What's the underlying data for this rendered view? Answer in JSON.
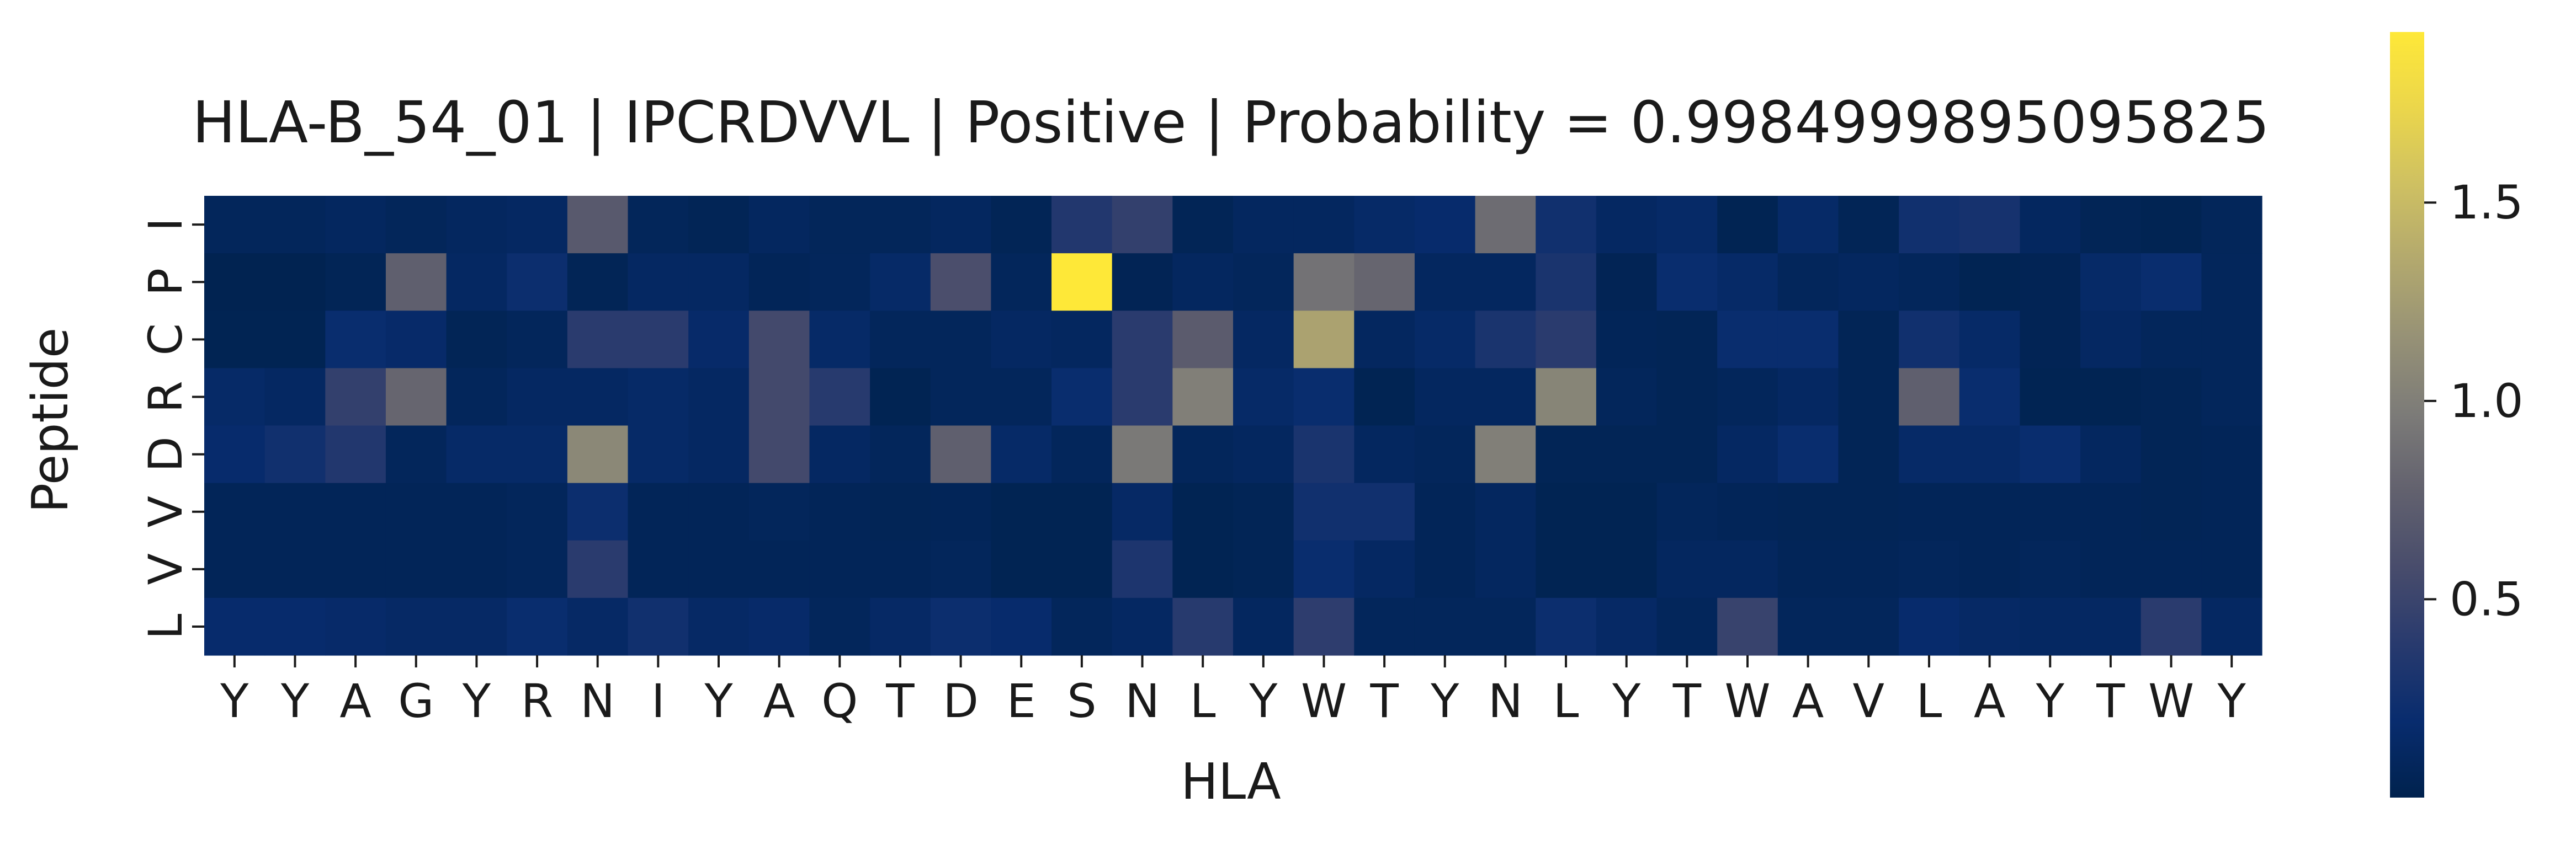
{
  "chart_data": {
    "type": "heatmap",
    "title": "HLA-B_54_01 | IPCRDVVL | Positive | Probability = 0.9984999895095825",
    "xlabel": "HLA",
    "ylabel": "Peptide",
    "x_ticks": [
      "Y",
      "Y",
      "A",
      "G",
      "Y",
      "R",
      "N",
      "I",
      "Y",
      "A",
      "Q",
      "T",
      "D",
      "E",
      "S",
      "N",
      "L",
      "Y",
      "W",
      "T",
      "Y",
      "N",
      "L",
      "Y",
      "T",
      "W",
      "A",
      "V",
      "L",
      "A",
      "Y",
      "T",
      "W",
      "Y"
    ],
    "y_ticks": [
      "I",
      "P",
      "C",
      "R",
      "D",
      "V",
      "V",
      "L"
    ],
    "colormap": "cividis",
    "colorbar": {
      "min": 0.0,
      "max": 1.93,
      "ticks": [
        0.5,
        1.0,
        1.5
      ],
      "tick_labels": [
        "0.5",
        "1.0",
        "1.5"
      ]
    },
    "values": [
      [
        0.08,
        0.08,
        0.1,
        0.07,
        0.1,
        0.12,
        0.7,
        0.07,
        0.05,
        0.1,
        0.07,
        0.07,
        0.1,
        0.05,
        0.35,
        0.45,
        0.05,
        0.1,
        0.1,
        0.15,
        0.18,
        0.85,
        0.25,
        0.12,
        0.15,
        0.03,
        0.15,
        0.05,
        0.25,
        0.28,
        0.1,
        0.05,
        0.03,
        0.07
      ],
      [
        0.02,
        0.02,
        0.05,
        0.75,
        0.12,
        0.22,
        0.05,
        0.12,
        0.12,
        0.06,
        0.08,
        0.15,
        0.6,
        0.08,
        1.93,
        0.04,
        0.1,
        0.08,
        0.9,
        0.8,
        0.1,
        0.1,
        0.3,
        0.04,
        0.2,
        0.15,
        0.08,
        0.1,
        0.08,
        0.03,
        0.04,
        0.15,
        0.2,
        0.08
      ],
      [
        0.03,
        0.03,
        0.2,
        0.16,
        0.05,
        0.08,
        0.4,
        0.4,
        0.16,
        0.55,
        0.15,
        0.08,
        0.08,
        0.12,
        0.1,
        0.4,
        0.72,
        0.12,
        1.3,
        0.1,
        0.15,
        0.3,
        0.4,
        0.06,
        0.05,
        0.2,
        0.2,
        0.05,
        0.25,
        0.15,
        0.04,
        0.12,
        0.08,
        0.08
      ],
      [
        0.15,
        0.12,
        0.45,
        0.8,
        0.08,
        0.12,
        0.12,
        0.15,
        0.12,
        0.55,
        0.38,
        0.03,
        0.08,
        0.08,
        0.2,
        0.4,
        1.0,
        0.15,
        0.2,
        0.03,
        0.1,
        0.1,
        1.05,
        0.08,
        0.05,
        0.08,
        0.12,
        0.05,
        0.75,
        0.2,
        0.03,
        0.03,
        0.05,
        0.08
      ],
      [
        0.18,
        0.25,
        0.35,
        0.08,
        0.15,
        0.15,
        1.08,
        0.15,
        0.12,
        0.55,
        0.12,
        0.08,
        0.75,
        0.15,
        0.08,
        0.95,
        0.08,
        0.1,
        0.3,
        0.1,
        0.08,
        1.0,
        0.05,
        0.05,
        0.05,
        0.12,
        0.2,
        0.05,
        0.15,
        0.15,
        0.2,
        0.1,
        0.05,
        0.06
      ],
      [
        0.06,
        0.06,
        0.06,
        0.06,
        0.06,
        0.08,
        0.22,
        0.06,
        0.06,
        0.08,
        0.06,
        0.05,
        0.06,
        0.03,
        0.03,
        0.14,
        0.03,
        0.05,
        0.25,
        0.25,
        0.06,
        0.1,
        0.03,
        0.03,
        0.08,
        0.06,
        0.05,
        0.05,
        0.06,
        0.06,
        0.06,
        0.06,
        0.05,
        0.06
      ],
      [
        0.06,
        0.06,
        0.06,
        0.06,
        0.06,
        0.08,
        0.4,
        0.06,
        0.06,
        0.06,
        0.06,
        0.06,
        0.08,
        0.03,
        0.03,
        0.32,
        0.03,
        0.05,
        0.2,
        0.12,
        0.06,
        0.1,
        0.03,
        0.03,
        0.1,
        0.1,
        0.06,
        0.06,
        0.08,
        0.06,
        0.08,
        0.06,
        0.06,
        0.06
      ],
      [
        0.18,
        0.18,
        0.16,
        0.14,
        0.14,
        0.2,
        0.14,
        0.25,
        0.14,
        0.16,
        0.08,
        0.14,
        0.22,
        0.18,
        0.08,
        0.12,
        0.38,
        0.1,
        0.42,
        0.08,
        0.08,
        0.08,
        0.22,
        0.14,
        0.08,
        0.48,
        0.08,
        0.08,
        0.18,
        0.14,
        0.12,
        0.12,
        0.4,
        0.12
      ]
    ]
  }
}
